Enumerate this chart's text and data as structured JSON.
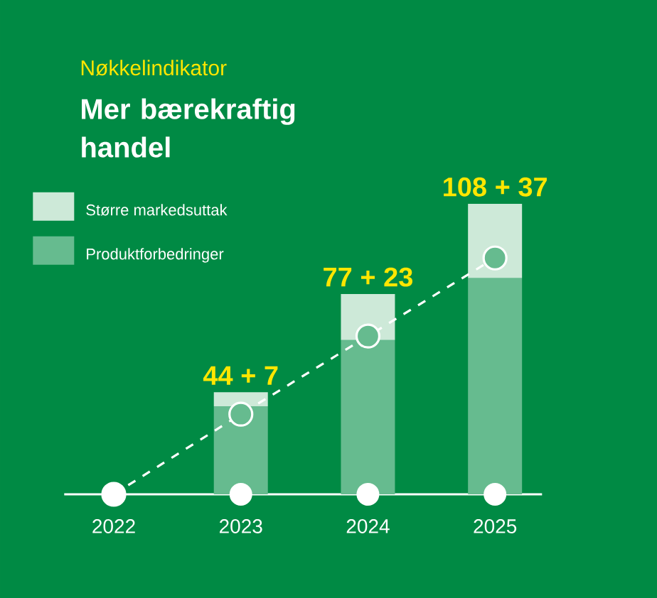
{
  "chart_data": {
    "type": "bar",
    "stacked": true,
    "subtitle": "Nøkkelindikator",
    "title": "Mer bærekraftig handel",
    "categories": [
      "2022",
      "2023",
      "2024",
      "2025"
    ],
    "series": [
      {
        "name": "Produktforbedringer",
        "color": "#66bb8f",
        "values": [
          null,
          44,
          77,
          108
        ],
        "value_labels": [
          null,
          "44",
          "77",
          "108"
        ]
      },
      {
        "name": "Større markedsuttak",
        "color": "#cde9d8",
        "values": [
          null,
          7,
          23,
          37
        ],
        "value_labels": [
          null,
          "7",
          "23",
          "37"
        ]
      },
      {
        "type": "line",
        "color": "#ffffff",
        "values": [
          0,
          40,
          79,
          118
        ],
        "line_style": "dashed",
        "marker": "circle"
      }
    ],
    "annotations": [
      {
        "text": "+",
        "x": "2023",
        "y": 51
      },
      {
        "text": "+",
        "x": "2024",
        "y": 100
      },
      {
        "text": "+",
        "x": "2025",
        "y": 145
      }
    ],
    "legend": "top left",
    "grid": false
  }
}
